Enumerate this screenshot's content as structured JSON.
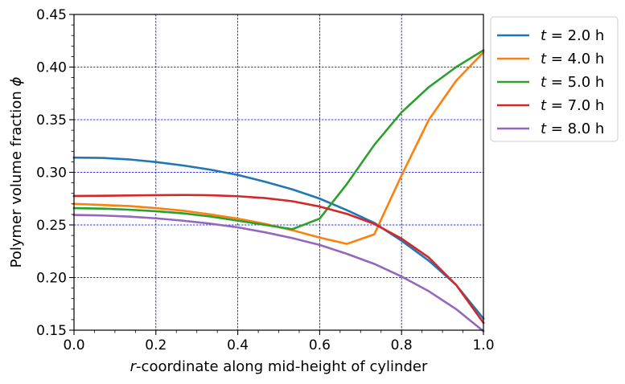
{
  "chart_data": {
    "type": "line",
    "title": "",
    "xlabel_italic": "r",
    "xlabel_rest": "-coordinate along mid-height of cylinder",
    "ylabel_text": "Polymer volume fraction ",
    "ylabel_italic": "ϕ",
    "xlim": [
      0.0,
      1.0
    ],
    "ylim": [
      0.15,
      0.45
    ],
    "xticks": [
      0.0,
      0.2,
      0.4,
      0.6,
      0.8,
      1.0
    ],
    "yticks": [
      0.15,
      0.2,
      0.25,
      0.3,
      0.35,
      0.4,
      0.45
    ],
    "xtick_labels": [
      "0.0",
      "0.2",
      "0.4",
      "0.6",
      "0.8",
      "1.0"
    ],
    "ytick_labels": [
      "0.15",
      "0.20",
      "0.25",
      "0.30",
      "0.35",
      "0.40",
      "0.45"
    ],
    "grid": true,
    "grid_color": "#0000cc",
    "legend_position": "outside-top-right",
    "x": [
      0.0,
      0.0667,
      0.1333,
      0.2,
      0.2667,
      0.3333,
      0.4,
      0.4667,
      0.5333,
      0.6,
      0.6667,
      0.7333,
      0.8,
      0.8667,
      0.9333,
      1.0
    ],
    "series": [
      {
        "name": "t = 2.0 h",
        "name_italic": "t",
        "name_rest": " =  2.0 h",
        "color": "#1f77b4",
        "values": [
          0.314,
          0.3137,
          0.3123,
          0.3098,
          0.3065,
          0.3025,
          0.2975,
          0.291,
          0.2838,
          0.275,
          0.264,
          0.252,
          0.235,
          0.216,
          0.193,
          0.161
        ]
      },
      {
        "name": "t = 4.0 h",
        "name_italic": "t",
        "name_rest": " =  4.0 h",
        "color": "#ff7f0e",
        "values": [
          0.27,
          0.269,
          0.268,
          0.266,
          0.2635,
          0.26,
          0.256,
          0.251,
          0.245,
          0.238,
          0.232,
          0.241,
          0.297,
          0.35,
          0.387,
          0.414
        ]
      },
      {
        "name": "t = 5.0 h",
        "name_italic": "t",
        "name_rest": " =  5.0 h",
        "color": "#2ca02c",
        "values": [
          0.266,
          0.2655,
          0.2645,
          0.263,
          0.261,
          0.258,
          0.254,
          0.25,
          0.246,
          0.256,
          0.289,
          0.326,
          0.357,
          0.381,
          0.4,
          0.416
        ]
      },
      {
        "name": "t = 7.0 h",
        "name_italic": "t",
        "name_rest": " =  7.0 h",
        "color": "#d62728",
        "values": [
          0.2775,
          0.2777,
          0.278,
          0.2783,
          0.2785,
          0.2782,
          0.2773,
          0.2755,
          0.2725,
          0.2675,
          0.2605,
          0.251,
          0.237,
          0.219,
          0.193,
          0.157
        ]
      },
      {
        "name": "t = 8.0 h",
        "name_italic": "t",
        "name_rest": " =  8.0 h",
        "color": "#9467bd",
        "values": [
          0.2595,
          0.259,
          0.258,
          0.2563,
          0.254,
          0.2512,
          0.2477,
          0.243,
          0.2375,
          0.231,
          0.2225,
          0.213,
          0.201,
          0.187,
          0.17,
          0.149
        ]
      }
    ]
  }
}
